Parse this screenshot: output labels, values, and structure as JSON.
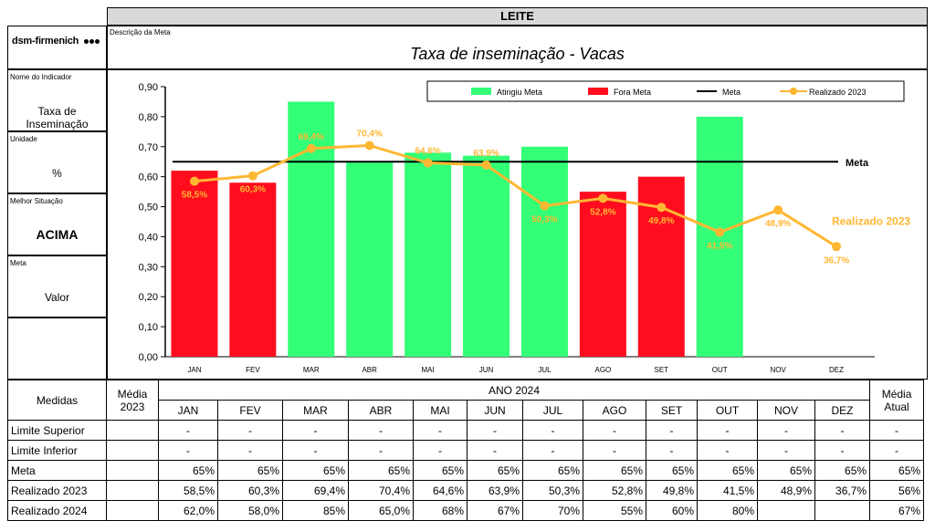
{
  "header": {
    "title": "LEITE"
  },
  "logo": {
    "text": "dsm-firmenich"
  },
  "meta_desc": {
    "label": "Descrição da Meta",
    "title": "Taxa de inseminação - Vacas"
  },
  "side": [
    {
      "label": "Nome do Indicador",
      "value": "Taxa de Inseminação",
      "bold": false
    },
    {
      "label": "Unidade",
      "value": "%",
      "bold": false
    },
    {
      "label": "Melhor Situação",
      "value": "ACIMA",
      "bold": true
    },
    {
      "label": "Meta",
      "value": "Valor",
      "bold": false
    }
  ],
  "chart_data": {
    "type": "bar",
    "categories": [
      "JAN",
      "FEV",
      "MAR",
      "ABR",
      "MAI",
      "JUN",
      "JUL",
      "AGO",
      "SET",
      "OUT",
      "NOV",
      "DEZ"
    ],
    "ylim": [
      0,
      0.9
    ],
    "yticks": [
      "0,00",
      "0,10",
      "0,20",
      "0,30",
      "0,40",
      "0,50",
      "0,60",
      "0,70",
      "0,80",
      "0,90"
    ],
    "bars": [
      0.62,
      0.58,
      0.85,
      0.65,
      0.68,
      0.67,
      0.7,
      0.55,
      0.6,
      0.8,
      null,
      null
    ],
    "bar_status": [
      "fora",
      "fora",
      "atingiu",
      "atingiu",
      "atingiu",
      "atingiu",
      "atingiu",
      "fora",
      "fora",
      "atingiu",
      null,
      null
    ],
    "meta": 0.65,
    "meta_label": "Meta",
    "realizado": [
      0.585,
      0.603,
      0.694,
      0.704,
      0.646,
      0.639,
      0.503,
      0.528,
      0.498,
      0.415,
      0.489,
      0.367
    ],
    "realizado_labels": [
      "58,5%",
      "60,3%",
      "69,4%",
      "70,4%",
      "64,6%",
      "63,9%",
      "50,3%",
      "52,8%",
      "49,8%",
      "41,5%",
      "48,9%",
      "36,7%"
    ],
    "series_label": "Realizado 2023",
    "legend": [
      "Atingiu Meta",
      "Fora Meta",
      "Meta",
      "Realizado 2023"
    ],
    "colors": {
      "atingiu": "#33ff77",
      "fora": "#ff0d1e",
      "realizado": "#ffb733",
      "meta": "#000000"
    }
  },
  "table": {
    "medidas": "Medidas",
    "media2023": [
      "Média",
      "2023"
    ],
    "ano": "ANO 2024",
    "media_atual": [
      "Média",
      "Atual"
    ],
    "months": [
      "JAN",
      "FEV",
      "MAR",
      "ABR",
      "MAI",
      "JUN",
      "JUL",
      "AGO",
      "SET",
      "OUT",
      "NOV",
      "DEZ"
    ],
    "rows": [
      {
        "label": "Limite Superior",
        "m2023": "",
        "vals": [
          "-",
          "-",
          "-",
          "-",
          "-",
          "-",
          "-",
          "-",
          "-",
          "-",
          "-",
          "-"
        ],
        "atual": "-"
      },
      {
        "label": "Limite Inferior",
        "m2023": "",
        "vals": [
          "-",
          "-",
          "-",
          "-",
          "-",
          "-",
          "-",
          "-",
          "-",
          "-",
          "-",
          "-"
        ],
        "atual": "-"
      },
      {
        "label": "Meta",
        "m2023": "",
        "vals": [
          "65%",
          "65%",
          "65%",
          "65%",
          "65%",
          "65%",
          "65%",
          "65%",
          "65%",
          "65%",
          "65%",
          "65%"
        ],
        "atual": "65%"
      },
      {
        "label": "Realizado 2023",
        "m2023": "",
        "vals": [
          "58,5%",
          "60,3%",
          "69,4%",
          "70,4%",
          "64,6%",
          "63,9%",
          "50,3%",
          "52,8%",
          "49,8%",
          "41,5%",
          "48,9%",
          "36,7%"
        ],
        "atual": "56%"
      },
      {
        "label": "Realizado 2024",
        "m2023": "",
        "vals": [
          "62,0%",
          "58,0%",
          "85%",
          "65,0%",
          "68%",
          "67%",
          "70%",
          "55%",
          "60%",
          "80%",
          "",
          ""
        ],
        "atual": "67%"
      }
    ]
  }
}
